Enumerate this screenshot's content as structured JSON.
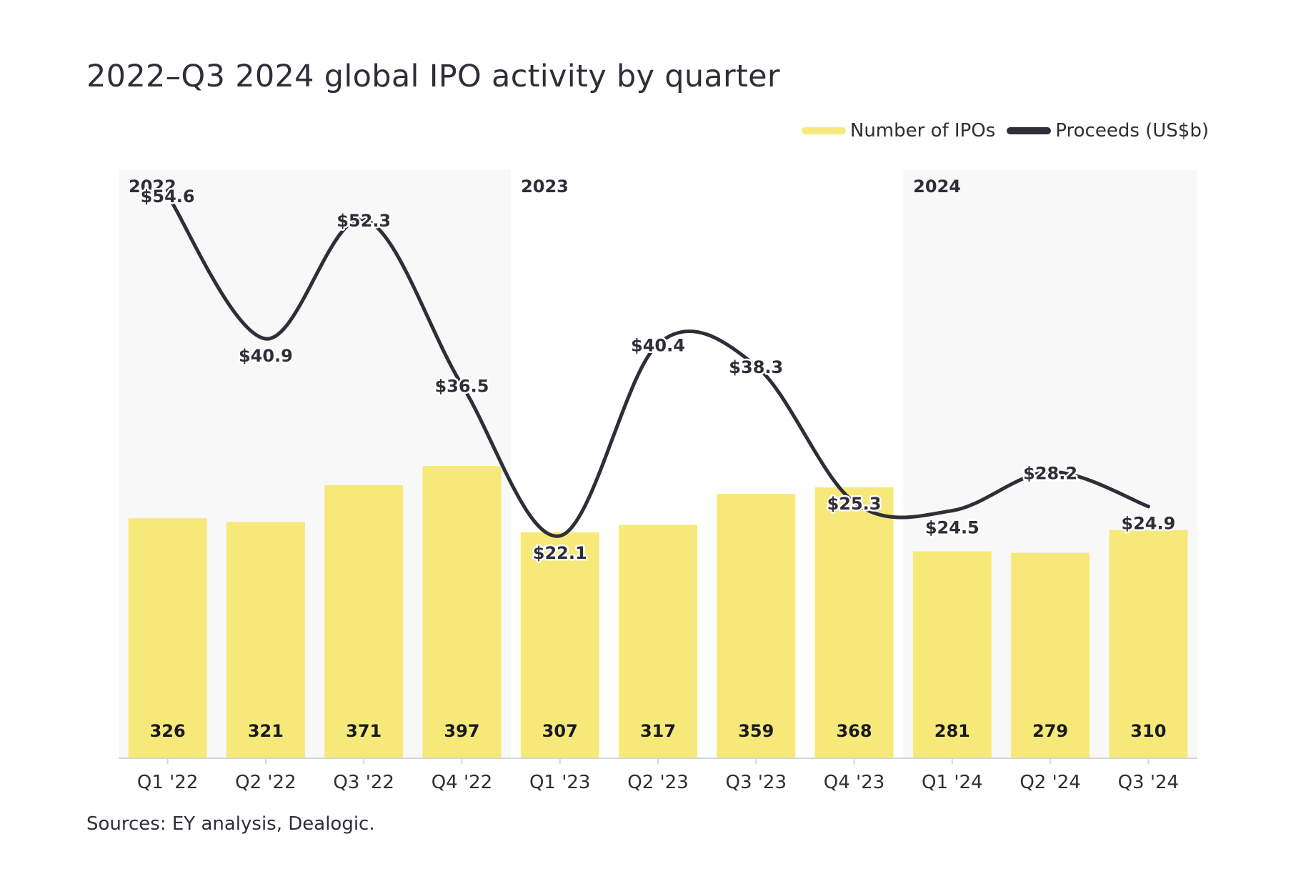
{
  "chart_data": {
    "type": "bar",
    "title": "2022–Q3 2024 global IPO activity by quarter",
    "categories": [
      "Q1 '22",
      "Q2 '22",
      "Q3 '22",
      "Q4 '22",
      "Q1 '23",
      "Q2 '23",
      "Q3 '23",
      "Q4 '23",
      "Q1 '24",
      "Q2 '24",
      "Q3 '24"
    ],
    "series": [
      {
        "name": "Number of IPOs",
        "type": "bar",
        "color": "#f6e97a",
        "values": [
          326,
          321,
          371,
          397,
          307,
          317,
          359,
          368,
          281,
          279,
          310
        ],
        "labels": [
          "326",
          "321",
          "371",
          "397",
          "307",
          "317",
          "359",
          "368",
          "281",
          "279",
          "310"
        ]
      },
      {
        "name": "Proceeds (US$b)",
        "type": "line",
        "color": "#2e2e38",
        "values": [
          54.6,
          40.9,
          52.3,
          36.5,
          22.1,
          40.4,
          38.3,
          25.3,
          24.5,
          28.2,
          24.9
        ],
        "labels": [
          "$54.6",
          "$40.9",
          "$52.3",
          "$36.5",
          "$22.1",
          "$40.4",
          "$38.3",
          "$25.3",
          "$24.5",
          "$28.2",
          "$24.9"
        ]
      }
    ],
    "year_groups": [
      {
        "label": "2022",
        "start": 0,
        "end": 3,
        "shaded": true
      },
      {
        "label": "2023",
        "start": 4,
        "end": 7,
        "shaded": false
      },
      {
        "label": "2024",
        "start": 8,
        "end": 10,
        "shaded": true
      }
    ],
    "legend": "top-right",
    "grid": false,
    "xlabel": "",
    "ylabel": ""
  },
  "legend_items": [
    {
      "label": "Number of IPOs",
      "color": "#f6e97a"
    },
    {
      "label": "Proceeds (US$b)",
      "color": "#2e2e38"
    }
  ],
  "source_note": "Sources: EY analysis, Dealogic.",
  "colors": {
    "bar": "#f6e97a",
    "line": "#2e2e38",
    "shade": "#f8f8f8",
    "axis": "#d6d6d6",
    "text": "#2e2e38"
  }
}
